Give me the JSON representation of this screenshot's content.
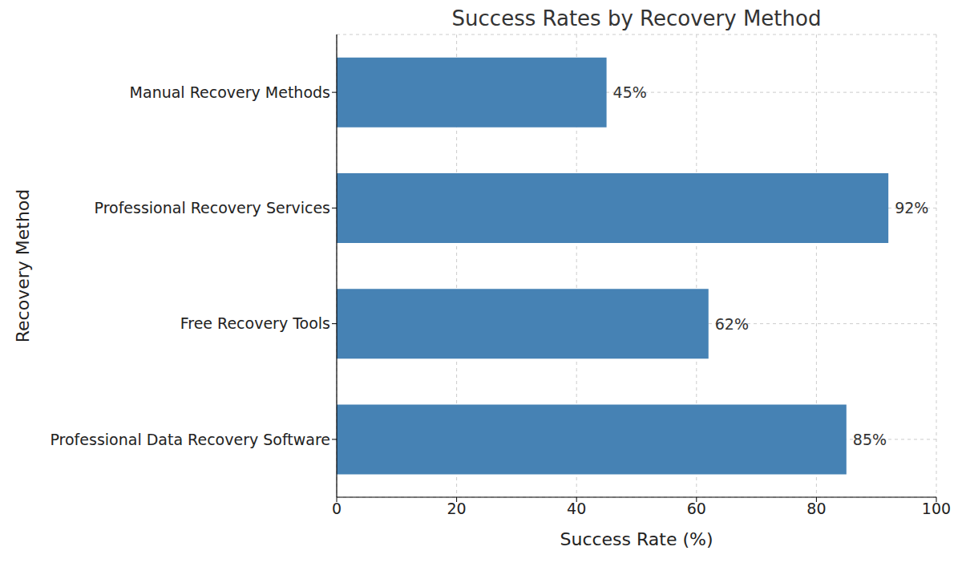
{
  "chart_data": {
    "type": "bar",
    "title": "Success Rates by Recovery Method",
    "orientation": "horizontal",
    "categories": [
      "Manual Recovery Methods",
      "Professional Recovery Services",
      "Free Recovery Tools",
      "Professional Data Recovery Software"
    ],
    "values": [
      45,
      92,
      62,
      85
    ],
    "value_labels": [
      "45%",
      "92%",
      "62%",
      "85%"
    ],
    "data_labels": true,
    "color": "#4682b4",
    "x_label": "Success Rate (%)",
    "y_label": "Recovery Method",
    "xlim": [
      0,
      100
    ],
    "xticks": [
      0,
      20,
      40,
      60,
      80,
      100
    ],
    "grid": true
  }
}
